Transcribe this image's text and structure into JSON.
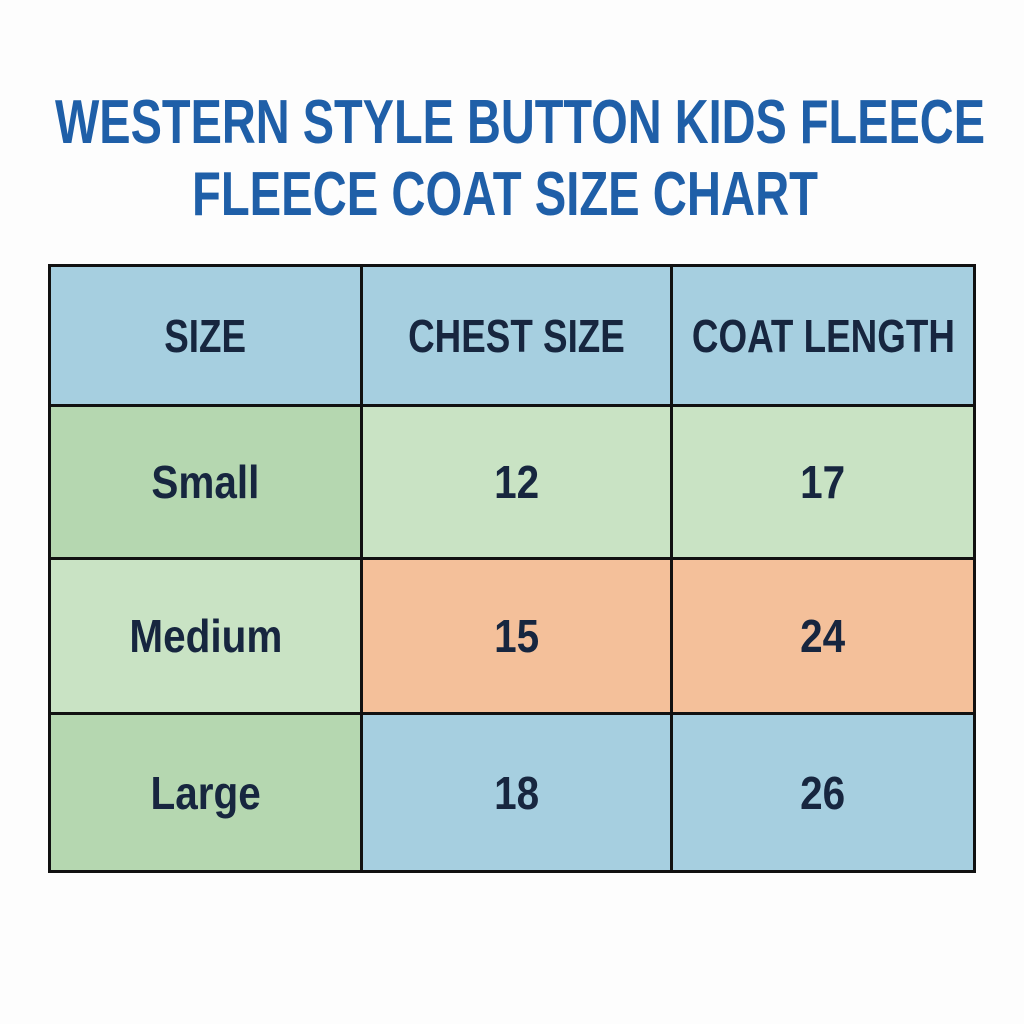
{
  "header": {
    "title_lines": [
      "WESTERN STYLE BUTTON KIDS FLEECE",
      "FLEECE COAT SIZE CHART"
    ]
  },
  "table": {
    "columns": [
      "SIZE",
      "CHEST SIZE",
      "COAT LENGTH"
    ],
    "rows": [
      [
        "Small",
        12,
        17
      ],
      [
        "Medium",
        15,
        24
      ],
      [
        "Large",
        18,
        26
      ]
    ]
  }
}
